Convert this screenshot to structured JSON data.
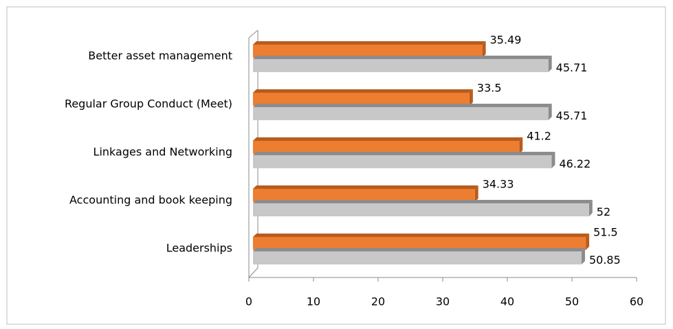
{
  "chart_data": {
    "type": "bar",
    "orientation": "horizontal",
    "categories": [
      "Better asset management",
      "Regular Group Conduct (Meet)",
      "Linkages and Networking",
      "Accounting and book keeping",
      "Leaderships"
    ],
    "series": [
      {
        "color": "#ed7d31",
        "values": [
          35.49,
          33.5,
          41.2,
          34.33,
          51.5
        ]
      },
      {
        "color": "#c8c8c8",
        "values": [
          45.71,
          45.71,
          46.22,
          52,
          50.85
        ]
      }
    ],
    "xlim": [
      0,
      60
    ],
    "xticks": [
      0,
      10,
      20,
      30,
      40,
      50,
      60
    ],
    "grid": false
  }
}
